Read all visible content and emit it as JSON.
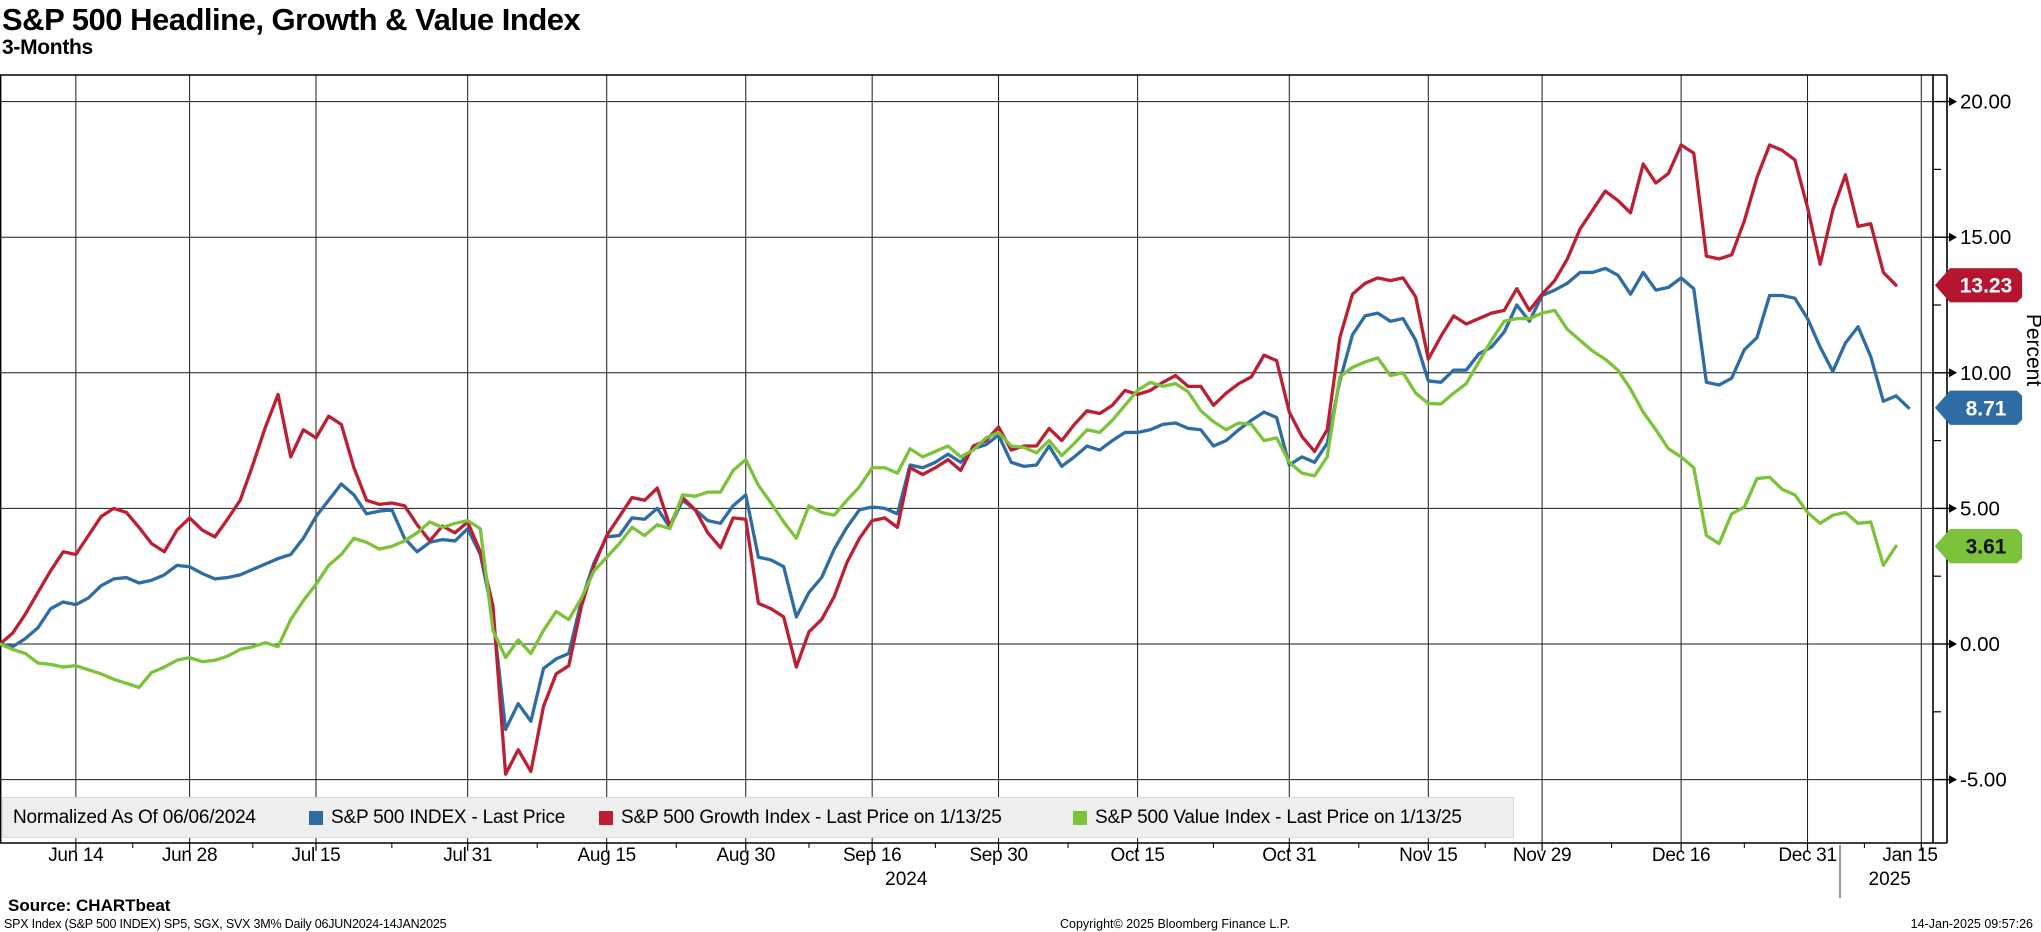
{
  "title": "S&P 500 Headline, Growth & Value Index",
  "subtitle": "3-Months",
  "y_axis": {
    "title": "Percent",
    "tick_labels": [
      "20.00",
      "15.00",
      "10.00",
      "5.00",
      "0.00",
      "-5.00"
    ],
    "tick_values": [
      20,
      15,
      10,
      5,
      0,
      -5
    ],
    "minor_tick_values": [
      17.5,
      12.5,
      7.5,
      2.5,
      -2.5
    ]
  },
  "x_axis": {
    "ticks": [
      {
        "label": "Jun 14",
        "day": 6
      },
      {
        "label": "Jun 28",
        "day": 15
      },
      {
        "label": "Jul 15",
        "day": 25
      },
      {
        "label": "Jul 31",
        "day": 37
      },
      {
        "label": "Aug 15",
        "day": 48
      },
      {
        "label": "Aug 30",
        "day": 59
      },
      {
        "label": "Sep 16",
        "day": 69
      },
      {
        "label": "Sep 30",
        "day": 79
      },
      {
        "label": "Oct 15",
        "day": 90
      },
      {
        "label": "Oct 31",
        "day": 102
      },
      {
        "label": "Nov 15",
        "day": 113
      },
      {
        "label": "Nov 29",
        "day": 122
      },
      {
        "label": "Dec 16",
        "day": 133
      },
      {
        "label": "Dec 31",
        "day": 143
      },
      {
        "label": "Jan 15",
        "day": 152
      }
    ],
    "year_labels": [
      {
        "label": "2024",
        "day": 71.7
      },
      {
        "label": "2025",
        "day": 149.5
      }
    ]
  },
  "legend": {
    "normalized_label": "Normalized As Of 06/06/2024",
    "items": [
      {
        "label": "S&P 500 INDEX - Last Price",
        "color": "#2e6da4"
      },
      {
        "label": "S&P 500 Growth Index - Last Price on 1/13/25",
        "color": "#bc1f34"
      },
      {
        "label": "S&P 500 Value Index - Last Price on 1/13/25",
        "color": "#7cc23a"
      }
    ]
  },
  "tags": [
    {
      "value": "13.23",
      "at": 13.23,
      "bg": "#b5152f",
      "fg": "#ffffff"
    },
    {
      "value": "8.71",
      "at": 8.71,
      "bg": "#2e6da4",
      "fg": "#ffffff"
    },
    {
      "value": "3.61",
      "at": 3.61,
      "bg": "#7cc23a",
      "fg": "#101010"
    }
  ],
  "footer": {
    "source": "Source: CHARTbeat",
    "meta": "SPX Index (S&P 500 INDEX) SP5, SGX, SVX 3M%  Daily 06JUN2024-14JAN2025",
    "copyright": "Copyright© 2025 Bloomberg Finance L.P.",
    "timestamp": "14-Jan-2025 09:57:26"
  },
  "chart_data": {
    "type": "line",
    "title": "S&P 500 Headline, Growth & Value Index, 3-Months, normalized as of 06/06/2024",
    "xlabel": "trading days from 06/06/2024 to 14/01/2025",
    "ylabel": "Percent",
    "ylim": [
      -7.3,
      21.0
    ],
    "x_range_days": [
      0,
      152
    ],
    "grid": true,
    "legend_position": "bottom",
    "series": [
      {
        "name": "S&P 500 INDEX - Last Price",
        "color": "#2e6da4",
        "last_value": 8.71,
        "values": [
          0,
          -0.1,
          0.2,
          0.6,
          1.3,
          1.55,
          1.45,
          1.7,
          2.15,
          2.4,
          2.45,
          2.25,
          2.35,
          2.55,
          2.9,
          2.85,
          2.6,
          2.4,
          2.45,
          2.55,
          2.75,
          2.95,
          3.15,
          3.3,
          3.9,
          4.7,
          5.3,
          5.9,
          5.5,
          4.8,
          4.9,
          4.95,
          3.9,
          3.4,
          3.75,
          3.85,
          3.8,
          4.25,
          3.3,
          1.05,
          -3.15,
          -2.2,
          -2.85,
          -0.9,
          -0.55,
          -0.35,
          1.6,
          3.0,
          3.95,
          4.0,
          4.65,
          4.6,
          5.0,
          4.3,
          5.3,
          4.95,
          4.55,
          4.45,
          5.1,
          5.5,
          3.2,
          3.1,
          2.85,
          1.0,
          1.9,
          2.45,
          3.5,
          4.3,
          4.95,
          5.05,
          5.0,
          4.8,
          6.6,
          6.5,
          6.7,
          7.0,
          6.7,
          7.2,
          7.35,
          7.7,
          6.7,
          6.55,
          6.6,
          7.3,
          6.55,
          6.9,
          7.3,
          7.15,
          7.5,
          7.8,
          7.8,
          7.9,
          8.1,
          8.15,
          7.95,
          7.9,
          7.3,
          7.5,
          7.9,
          8.25,
          8.55,
          8.35,
          6.6,
          6.9,
          6.7,
          7.4,
          9.7,
          11.4,
          12.1,
          12.2,
          11.9,
          12.0,
          11.2,
          9.7,
          9.65,
          10.1,
          10.1,
          10.7,
          10.95,
          11.5,
          12.5,
          11.9,
          12.85,
          13.05,
          13.3,
          13.7,
          13.7,
          13.85,
          13.6,
          12.9,
          13.7,
          13.05,
          13.15,
          13.5,
          13.1,
          9.65,
          9.55,
          9.8,
          10.85,
          11.3,
          12.85,
          12.85,
          12.75,
          12.0,
          10.95,
          10.05,
          11.1,
          11.7,
          10.6,
          8.95,
          9.15,
          8.71
        ]
      },
      {
        "name": "S&P 500 Growth Index - Last Price on 1/13/25",
        "color": "#bc1f34",
        "last_value": 13.23,
        "values": [
          0,
          0.4,
          1.1,
          1.9,
          2.7,
          3.4,
          3.3,
          4.0,
          4.7,
          5.0,
          4.85,
          4.3,
          3.7,
          3.4,
          4.2,
          4.65,
          4.2,
          3.95,
          4.6,
          5.3,
          6.6,
          8.0,
          9.2,
          6.9,
          7.9,
          7.6,
          8.4,
          8.1,
          6.5,
          5.3,
          5.15,
          5.2,
          5.1,
          4.4,
          3.8,
          4.35,
          4.1,
          4.5,
          3.4,
          1.4,
          -4.8,
          -3.9,
          -4.7,
          -2.3,
          -1.1,
          -0.8,
          1.4,
          2.9,
          4.0,
          4.7,
          5.4,
          5.3,
          5.75,
          4.35,
          5.4,
          4.95,
          4.1,
          3.55,
          4.65,
          4.6,
          1.5,
          1.3,
          1.0,
          -0.85,
          0.45,
          0.9,
          1.75,
          3.0,
          3.9,
          4.55,
          4.65,
          4.3,
          6.5,
          6.25,
          6.5,
          6.8,
          6.4,
          7.3,
          7.5,
          8.0,
          7.15,
          7.3,
          7.3,
          7.95,
          7.5,
          8.1,
          8.6,
          8.5,
          8.8,
          9.35,
          9.2,
          9.35,
          9.65,
          9.9,
          9.5,
          9.5,
          8.8,
          9.25,
          9.6,
          9.85,
          10.65,
          10.45,
          8.55,
          7.65,
          7.1,
          7.9,
          11.3,
          12.9,
          13.3,
          13.5,
          13.4,
          13.5,
          12.8,
          10.5,
          11.35,
          12.1,
          11.8,
          12.0,
          12.2,
          12.3,
          13.1,
          12.3,
          12.9,
          13.4,
          14.2,
          15.3,
          16.0,
          16.7,
          16.35,
          15.9,
          17.7,
          17.0,
          17.35,
          18.4,
          18.1,
          14.3,
          14.2,
          14.35,
          15.6,
          17.2,
          18.4,
          18.2,
          17.85,
          16.1,
          14.0,
          16.0,
          17.3,
          15.4,
          15.5,
          13.7,
          13.23
        ]
      },
      {
        "name": "S&P 500 Value Index - Last Price on 1/13/25",
        "color": "#7cc23a",
        "last_value": 3.61,
        "values": [
          0,
          -0.2,
          -0.35,
          -0.7,
          -0.75,
          -0.85,
          -0.8,
          -0.95,
          -1.1,
          -1.3,
          -1.45,
          -1.6,
          -1.05,
          -0.85,
          -0.6,
          -0.5,
          -0.65,
          -0.6,
          -0.45,
          -0.2,
          -0.1,
          0.05,
          -0.1,
          0.9,
          1.6,
          2.2,
          2.9,
          3.3,
          3.9,
          3.75,
          3.5,
          3.6,
          3.8,
          4.1,
          4.5,
          4.3,
          4.45,
          4.55,
          4.25,
          0.5,
          -0.5,
          0.15,
          -0.35,
          0.5,
          1.2,
          0.9,
          1.7,
          2.7,
          3.2,
          3.7,
          4.3,
          4.0,
          4.4,
          4.25,
          5.5,
          5.45,
          5.6,
          5.6,
          6.4,
          6.8,
          5.85,
          5.2,
          4.5,
          3.9,
          5.1,
          4.85,
          4.75,
          5.3,
          5.8,
          6.5,
          6.5,
          6.3,
          7.2,
          6.9,
          7.1,
          7.3,
          6.9,
          7.15,
          7.6,
          7.8,
          7.3,
          7.25,
          7.05,
          7.5,
          6.95,
          7.4,
          7.9,
          7.8,
          8.25,
          8.8,
          9.35,
          9.65,
          9.5,
          9.6,
          9.3,
          8.6,
          8.2,
          7.9,
          8.15,
          8.1,
          7.5,
          7.6,
          6.7,
          6.3,
          6.2,
          6.9,
          9.85,
          10.2,
          10.4,
          10.55,
          9.9,
          10.0,
          9.25,
          8.87,
          8.85,
          9.25,
          9.6,
          10.4,
          11.2,
          11.9,
          12.0,
          12.0,
          12.2,
          12.3,
          11.6,
          11.2,
          10.8,
          10.5,
          10.1,
          9.4,
          8.55,
          7.9,
          7.2,
          6.9,
          6.5,
          4.0,
          3.7,
          4.8,
          5.05,
          6.1,
          6.15,
          5.7,
          5.5,
          4.85,
          4.45,
          4.75,
          4.85,
          4.45,
          4.5,
          2.9,
          3.61
        ]
      }
    ]
  }
}
